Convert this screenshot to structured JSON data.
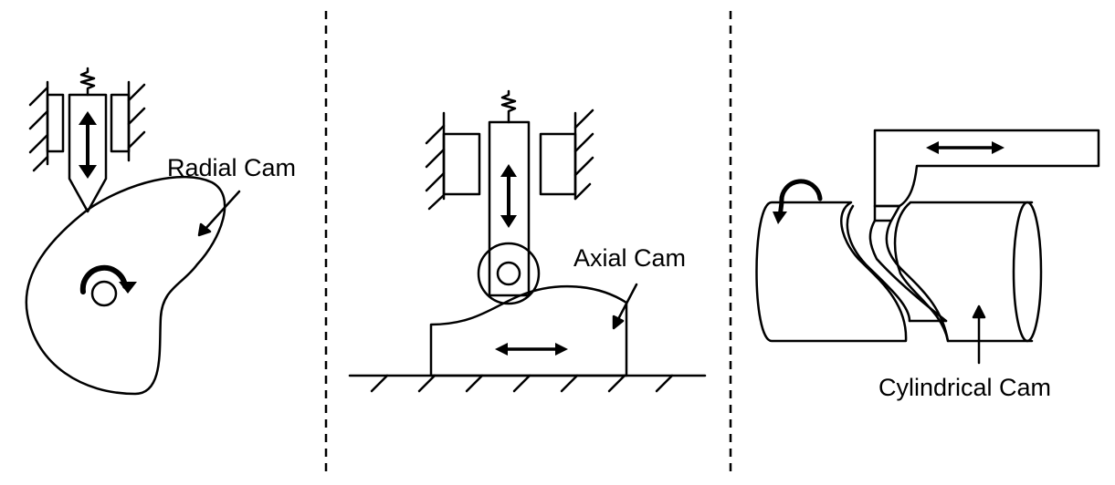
{
  "labels": {
    "radial": "Radial Cam",
    "axial": "Axial Cam",
    "cylindrical": "Cylindrical Cam"
  }
}
